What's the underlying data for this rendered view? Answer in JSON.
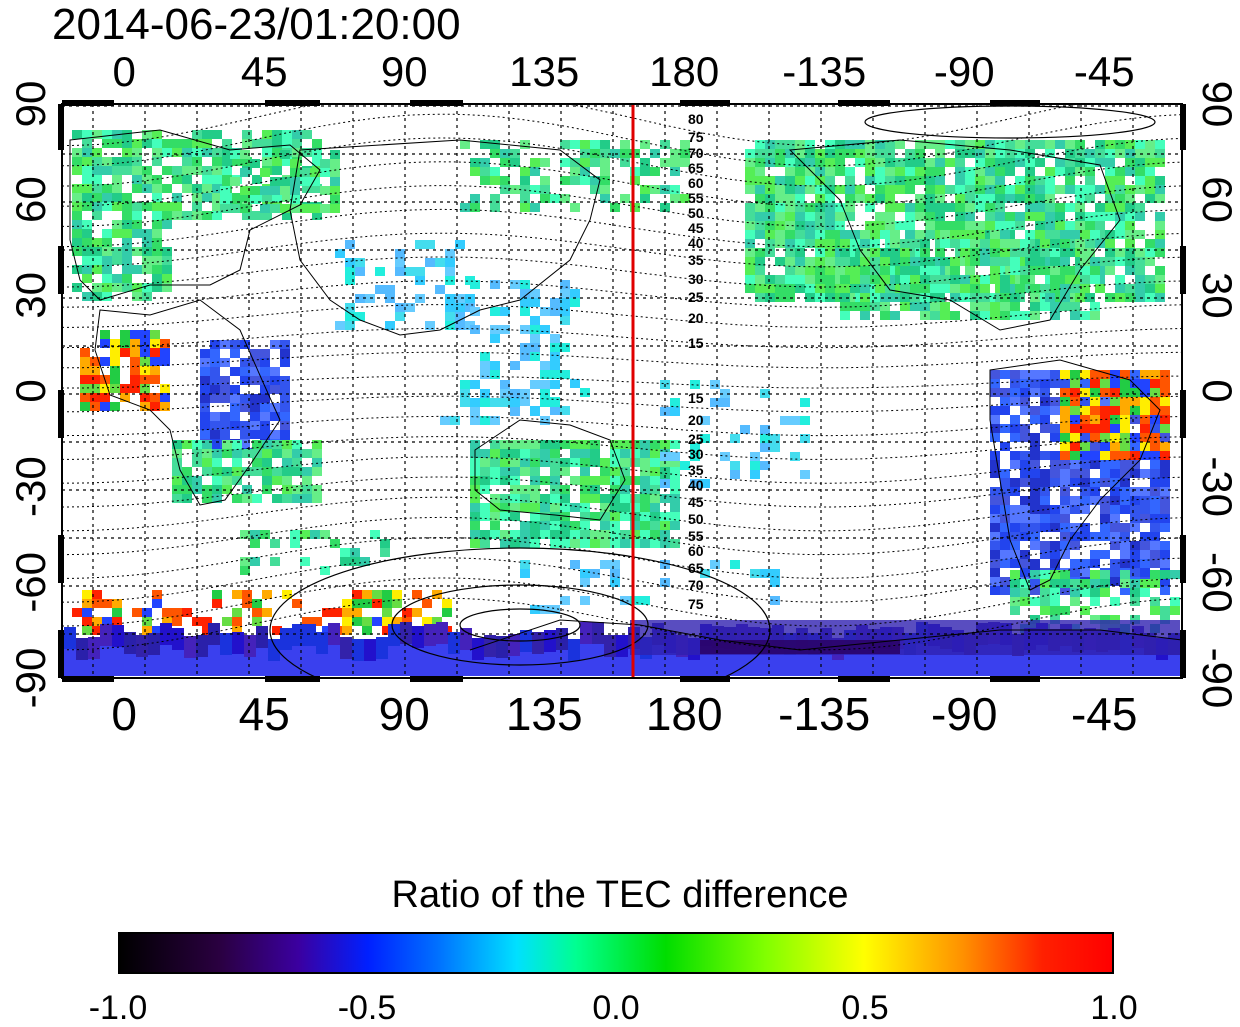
{
  "timestamp": "2014-06-23/01:20:00",
  "colorbar": {
    "title": "Ratio of the TEC difference",
    "tick_labels": [
      "-1.0",
      "-0.5",
      "0.0",
      "0.5",
      "1.0"
    ],
    "range": [
      -1.0,
      1.0
    ]
  },
  "map": {
    "lon_tick_labels": [
      "0",
      "45",
      "90",
      "135",
      "180",
      "-135",
      "-90",
      "-45"
    ],
    "lat_tick_labels_left": [
      "90",
      "60",
      "30",
      "0",
      "-30",
      "-60",
      "-90"
    ],
    "lat_tick_labels_right": [
      "90",
      "60",
      "30",
      "0",
      "-30",
      "-60",
      "-90"
    ],
    "terminator_longitude": 160,
    "contour_labels_north": [
      "80",
      "75",
      "70",
      "65",
      "60",
      "55",
      "50",
      "45",
      "40",
      "35",
      "30",
      "25",
      "20",
      "15"
    ],
    "contour_labels_south": [
      "15",
      "20",
      "25",
      "30",
      "35",
      "40",
      "45",
      "50",
      "55",
      "60",
      "65",
      "70",
      "75"
    ],
    "colors": {
      "terminator": "#e00000",
      "frame": "#000000"
    }
  }
}
